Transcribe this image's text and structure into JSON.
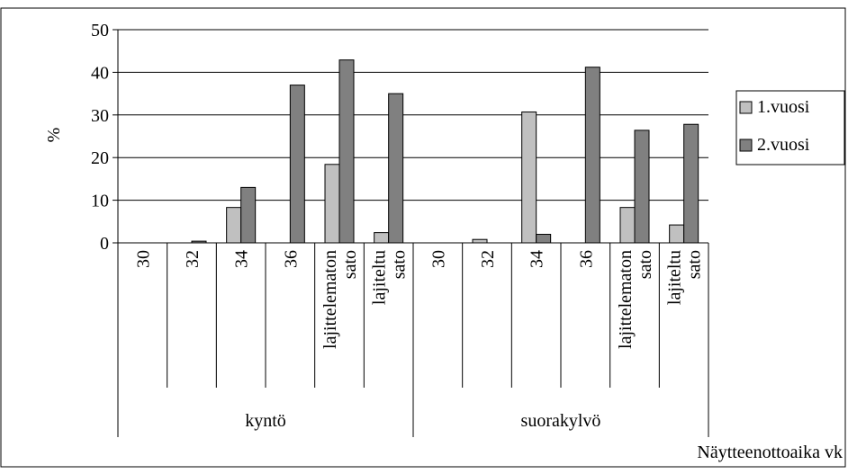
{
  "chart_data": {
    "type": "bar",
    "title": "",
    "ylabel": "%",
    "xlabel": "Näytteenottoaika vk",
    "ylim": [
      0,
      50
    ],
    "yticks": [
      0,
      10,
      20,
      30,
      40,
      50
    ],
    "grid": true,
    "legend_position": "right",
    "groups": [
      {
        "label": "kyntö",
        "categories": [
          "30",
          "32",
          "34",
          "36",
          "lajittelematon sato",
          "lajiteltu sato"
        ]
      },
      {
        "label": "suorakylvö",
        "categories": [
          "30",
          "32",
          "34",
          "36",
          "lajittelematon sato",
          "lajiteltu sato"
        ]
      }
    ],
    "series": [
      {
        "name": "1.vuosi",
        "color": "#c0c0c0",
        "values": [
          0,
          0,
          8.3,
          0,
          18.4,
          2.4,
          0,
          0.8,
          30.7,
          0,
          8.3,
          4.2
        ]
      },
      {
        "name": "2.vuosi",
        "color": "#808080",
        "values": [
          0,
          0.4,
          13,
          37,
          42.9,
          35,
          0,
          0,
          2,
          41.2,
          26.4,
          27.8
        ]
      }
    ]
  }
}
